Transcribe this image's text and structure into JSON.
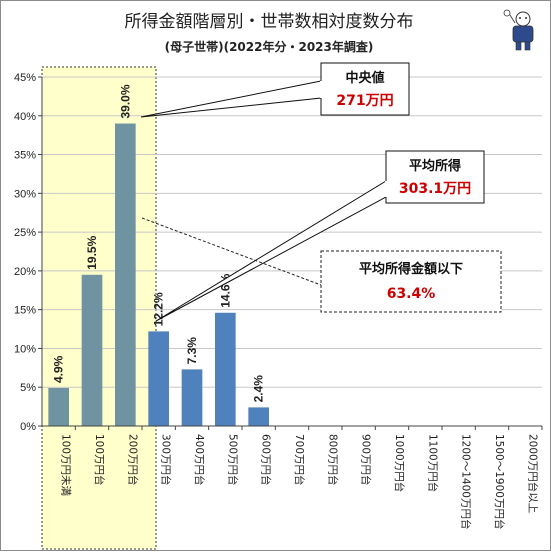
{
  "title": "所得金額階層別・世帯数相対度数分布",
  "subtitle": "(母子世帯)(2022年分・2023年調査)",
  "colors": {
    "highlight_bars": "#6f93a0",
    "normal_bars": "#4f81bd",
    "highlight_zone": "#ffffcc",
    "annotation_value": "#cc0000"
  },
  "annotations": {
    "median": {
      "label": "中央値",
      "value": "271万円"
    },
    "mean": {
      "label": "平均所得",
      "value": "303.1万円"
    },
    "below_mean": {
      "label": "平均所得金額以下",
      "value": "63.4%"
    }
  },
  "chart_data": {
    "type": "bar",
    "title": "所得金額階層別・世帯数相対度数分布",
    "subtitle": "(母子世帯)(2022年分・2023年調査)",
    "categories": [
      "100万円未満",
      "100万円台",
      "200万円台",
      "300万円台",
      "400万円台",
      "500万円台",
      "600万円台",
      "700万円台",
      "800万円台",
      "900万円台",
      "1000万円台",
      "1100万円台",
      "1200～1400万円台",
      "1500～1900万円台",
      "2000万円台以上"
    ],
    "values": [
      4.9,
      19.5,
      39.0,
      12.2,
      7.3,
      14.6,
      2.4,
      null,
      null,
      null,
      null,
      null,
      null,
      null,
      null
    ],
    "data_labels": [
      "4.9%",
      "19.5%",
      "39.0%",
      "12.2%",
      "7.3%",
      "14.6%",
      "2.4%",
      "",
      "",
      "",
      "",
      "",
      "",
      "",
      ""
    ],
    "highlighted_categories": [
      "100万円未満",
      "100万円台",
      "200万円台"
    ],
    "ylim": [
      0,
      45
    ],
    "yticks": [
      "0%",
      "5%",
      "10%",
      "15%",
      "20%",
      "25%",
      "30%",
      "35%",
      "40%",
      "45%"
    ],
    "grid": true,
    "legend": "none"
  }
}
